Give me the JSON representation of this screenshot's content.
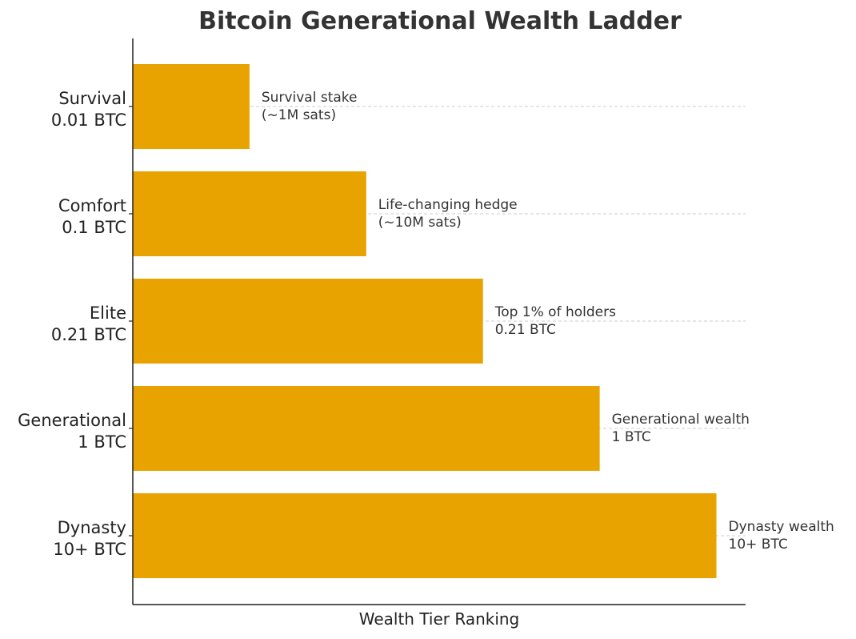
{
  "chart_data": {
    "type": "bar",
    "orientation": "horizontal",
    "title": "Bitcoin Generational Wealth Ladder",
    "xlabel": "Wealth Tier Ranking",
    "ylabel": "",
    "categories": [
      [
        "Survival",
        "0.01 BTC"
      ],
      [
        "Comfort",
        "0.1 BTC"
      ],
      [
        "Elite",
        "0.21 BTC"
      ],
      [
        "Generational",
        "1 BTC"
      ],
      [
        "Dynasty",
        "10+ BTC"
      ]
    ],
    "values": [
      1,
      2,
      3,
      4,
      5
    ],
    "xlim": [
      0,
      5.25
    ],
    "annotations": [
      [
        "Survival stake",
        "(~1M sats)"
      ],
      [
        "Life-changing hedge",
        "(~10M sats)"
      ],
      [
        "Top 1% of holders",
        "0.21 BTC"
      ],
      [
        "Generational wealth",
        "1 BTC"
      ],
      [
        "Dynasty wealth",
        "10+ BTC"
      ]
    ],
    "bar_color": "#E8A300",
    "grid": "horizontal dashed at each bar",
    "legend": "none"
  }
}
